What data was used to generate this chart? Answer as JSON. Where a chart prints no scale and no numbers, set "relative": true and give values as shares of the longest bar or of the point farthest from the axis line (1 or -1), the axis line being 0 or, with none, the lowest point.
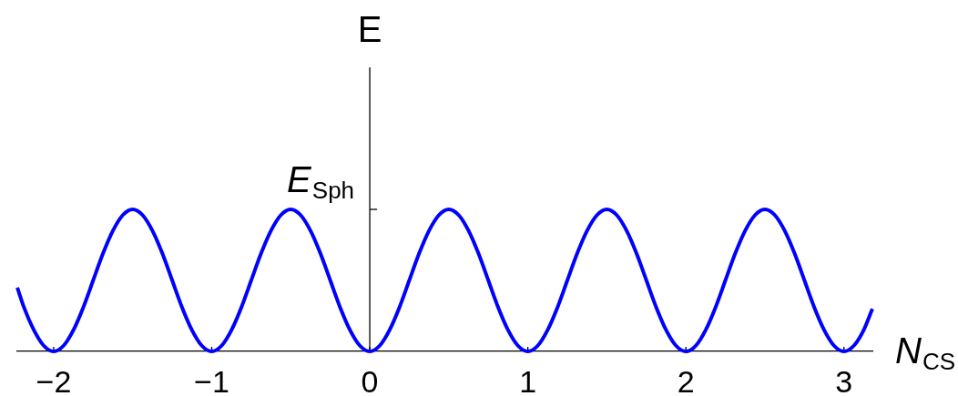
{
  "chart_data": {
    "type": "line",
    "xlabel": "N$_{CS}$",
    "ylabel": "E",
    "annotations": [
      "E$_{Sph}$"
    ],
    "relative": true,
    "marker": "none",
    "line_style": "solid",
    "xlim": [
      -2.23,
      3.18
    ],
    "xticks": [
      {
        "value": -2,
        "label": "−2"
      },
      {
        "value": -1,
        "label": "−1"
      },
      0,
      1,
      2,
      3
    ],
    "x": [
      -2.23,
      -2.1875,
      -2.125,
      -2.0625,
      -2,
      -1.9375,
      -1.875,
      -1.8125,
      -1.75,
      -1.6875,
      -1.625,
      -1.5625,
      -1.5,
      -1.4375,
      -1.375,
      -1.3125,
      -1.25,
      -1.1875,
      -1.125,
      -1.0625,
      -1,
      -0.9375,
      -0.875,
      -0.8125,
      -0.75,
      -0.6875,
      -0.625,
      -0.5625,
      -0.5,
      -0.4375,
      -0.375,
      -0.3125,
      -0.25,
      -0.1875,
      -0.125,
      -0.0625,
      0,
      0.0625,
      0.125,
      0.1875,
      0.25,
      0.3125,
      0.375,
      0.4375,
      0.5,
      0.5625,
      0.625,
      0.6875,
      0.75,
      0.8125,
      0.875,
      0.9375,
      1,
      1.0625,
      1.125,
      1.1875,
      1.25,
      1.3125,
      1.375,
      1.4375,
      1.5,
      1.5625,
      1.625,
      1.6875,
      1.75,
      1.8125,
      1.875,
      1.9375,
      2,
      2.0625,
      2.125,
      2.1875,
      2.25,
      2.3125,
      2.375,
      2.4375,
      2.5,
      2.5625,
      2.625,
      2.6875,
      2.75,
      2.8125,
      2.875,
      2.9375,
      3,
      3.0625,
      3.125,
      3.18
    ],
    "series": [
      {
        "color": "#0000ff",
        "values": [
          0.45,
          0.31,
          0.15,
          0.04,
          0,
          0.04,
          0.15,
          0.31,
          0.5,
          0.69,
          0.85,
          0.96,
          1,
          0.96,
          0.85,
          0.69,
          0.5,
          0.31,
          0.15,
          0.04,
          0,
          0.04,
          0.15,
          0.31,
          0.5,
          0.69,
          0.85,
          0.96,
          1,
          0.96,
          0.85,
          0.69,
          0.5,
          0.31,
          0.15,
          0.04,
          0,
          0.04,
          0.15,
          0.31,
          0.5,
          0.69,
          0.85,
          0.96,
          1,
          0.96,
          0.85,
          0.69,
          0.5,
          0.31,
          0.15,
          0.04,
          0,
          0.04,
          0.15,
          0.31,
          0.5,
          0.69,
          0.85,
          0.96,
          1,
          0.96,
          0.85,
          0.69,
          0.5,
          0.31,
          0.15,
          0.04,
          0,
          0.04,
          0.15,
          0.31,
          0.5,
          0.69,
          0.85,
          0.96,
          1,
          0.96,
          0.85,
          0.69,
          0.5,
          0.31,
          0.15,
          0.04,
          0,
          0.04,
          0.15,
          0.3
        ]
      }
    ]
  }
}
